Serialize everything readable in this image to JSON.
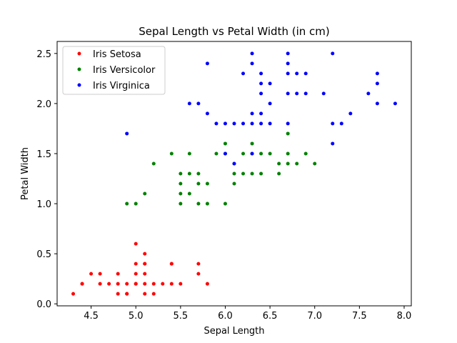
{
  "chart_data": {
    "type": "scatter",
    "title": "Sepal Length vs Petal Width (in cm)",
    "xlabel": "Sepal Length",
    "ylabel": "Petal Width",
    "xlim": [
      4.12,
      8.08
    ],
    "ylim": [
      -0.02,
      2.62
    ],
    "xticks": [
      4.5,
      5.0,
      5.5,
      6.0,
      6.5,
      7.0,
      7.5,
      8.0
    ],
    "yticks": [
      0.0,
      0.5,
      1.0,
      1.5,
      2.0,
      2.5
    ],
    "legend_position": "upper-left",
    "series": [
      {
        "name": "Iris Setosa",
        "color": "#ff0000",
        "points": [
          [
            4.3,
            0.1
          ],
          [
            4.4,
            0.2
          ],
          [
            4.4,
            0.2
          ],
          [
            4.5,
            0.3
          ],
          [
            4.6,
            0.3
          ],
          [
            4.6,
            0.2
          ],
          [
            4.7,
            0.2
          ],
          [
            4.8,
            0.3
          ],
          [
            4.8,
            0.2
          ],
          [
            4.8,
            0.1
          ],
          [
            4.9,
            0.2
          ],
          [
            4.9,
            0.1
          ],
          [
            4.9,
            0.1
          ],
          [
            5.0,
            0.6
          ],
          [
            5.0,
            0.4
          ],
          [
            5.0,
            0.3
          ],
          [
            5.0,
            0.2
          ],
          [
            5.0,
            0.2
          ],
          [
            5.1,
            0.5
          ],
          [
            5.1,
            0.4
          ],
          [
            5.1,
            0.4
          ],
          [
            5.1,
            0.3
          ],
          [
            5.1,
            0.2
          ],
          [
            5.1,
            0.1
          ],
          [
            5.2,
            0.2
          ],
          [
            5.2,
            0.1
          ],
          [
            5.3,
            0.2
          ],
          [
            5.4,
            0.4
          ],
          [
            5.4,
            0.4
          ],
          [
            5.4,
            0.2
          ],
          [
            5.5,
            0.2
          ],
          [
            5.7,
            0.4
          ],
          [
            5.7,
            0.3
          ],
          [
            5.8,
            0.2
          ]
        ]
      },
      {
        "name": "Iris Versicolor",
        "color": "#008000",
        "points": [
          [
            4.9,
            1.0
          ],
          [
            5.0,
            1.0
          ],
          [
            5.1,
            1.1
          ],
          [
            5.2,
            1.4
          ],
          [
            5.4,
            1.5
          ],
          [
            5.5,
            1.3
          ],
          [
            5.5,
            1.2
          ],
          [
            5.5,
            1.1
          ],
          [
            5.5,
            1.0
          ],
          [
            5.6,
            1.5
          ],
          [
            5.6,
            1.3
          ],
          [
            5.6,
            1.1
          ],
          [
            5.7,
            1.3
          ],
          [
            5.7,
            1.2
          ],
          [
            5.7,
            1.0
          ],
          [
            5.8,
            1.2
          ],
          [
            5.8,
            1.0
          ],
          [
            5.9,
            1.5
          ],
          [
            6.0,
            1.6
          ],
          [
            6.0,
            1.5
          ],
          [
            6.0,
            1.0
          ],
          [
            6.1,
            1.4
          ],
          [
            6.1,
            1.3
          ],
          [
            6.1,
            1.2
          ],
          [
            6.2,
            1.5
          ],
          [
            6.2,
            1.3
          ],
          [
            6.3,
            1.6
          ],
          [
            6.3,
            1.5
          ],
          [
            6.3,
            1.3
          ],
          [
            6.4,
            1.5
          ],
          [
            6.4,
            1.3
          ],
          [
            6.5,
            1.5
          ],
          [
            6.6,
            1.4
          ],
          [
            6.6,
            1.3
          ],
          [
            6.7,
            1.7
          ],
          [
            6.7,
            1.5
          ],
          [
            6.7,
            1.4
          ],
          [
            6.8,
            1.4
          ],
          [
            6.9,
            1.5
          ],
          [
            7.0,
            1.4
          ]
        ]
      },
      {
        "name": "Iris Virginica",
        "color": "#0000ff",
        "points": [
          [
            4.9,
            1.7
          ],
          [
            5.6,
            2.0
          ],
          [
            5.7,
            2.0
          ],
          [
            5.8,
            2.4
          ],
          [
            5.8,
            1.9
          ],
          [
            5.9,
            1.8
          ],
          [
            6.0,
            1.8
          ],
          [
            6.0,
            1.5
          ],
          [
            6.1,
            1.8
          ],
          [
            6.1,
            1.4
          ],
          [
            6.2,
            2.3
          ],
          [
            6.2,
            1.8
          ],
          [
            6.3,
            2.5
          ],
          [
            6.3,
            2.4
          ],
          [
            6.3,
            1.9
          ],
          [
            6.3,
            1.8
          ],
          [
            6.3,
            1.5
          ],
          [
            6.4,
            2.3
          ],
          [
            6.4,
            2.2
          ],
          [
            6.4,
            2.1
          ],
          [
            6.4,
            1.9
          ],
          [
            6.4,
            1.8
          ],
          [
            6.5,
            2.2
          ],
          [
            6.5,
            2.0
          ],
          [
            6.5,
            1.8
          ],
          [
            6.7,
            2.5
          ],
          [
            6.7,
            2.4
          ],
          [
            6.7,
            2.3
          ],
          [
            6.7,
            2.1
          ],
          [
            6.7,
            1.8
          ],
          [
            6.8,
            2.3
          ],
          [
            6.8,
            2.1
          ],
          [
            6.9,
            2.3
          ],
          [
            6.9,
            2.1
          ],
          [
            7.1,
            2.1
          ],
          [
            7.2,
            2.5
          ],
          [
            7.2,
            1.8
          ],
          [
            7.2,
            1.6
          ],
          [
            7.3,
            1.8
          ],
          [
            7.4,
            1.9
          ],
          [
            7.6,
            2.1
          ],
          [
            7.7,
            2.3
          ],
          [
            7.7,
            2.2
          ],
          [
            7.7,
            2.0
          ],
          [
            7.9,
            2.0
          ]
        ]
      }
    ]
  }
}
